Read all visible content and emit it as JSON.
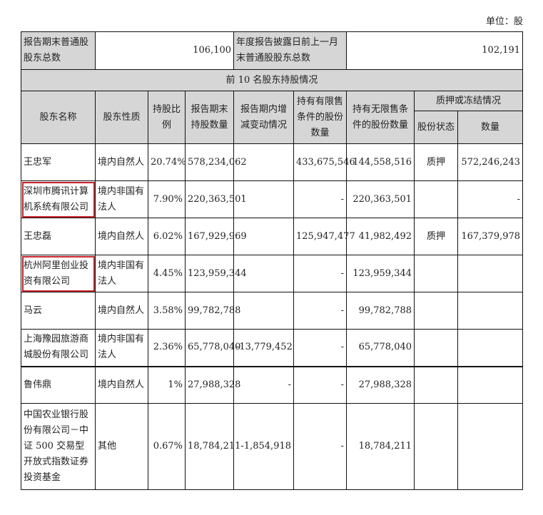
{
  "unit_label": "单位：股",
  "summary": {
    "label1": "报告期末普通股股东总数",
    "value1": "106,100",
    "label2": "年度报告披露日前上一月末普通股股东总数",
    "value2": "102,191"
  },
  "section_title": "前 10 名股东持股情况",
  "headers": {
    "name": "股东名称",
    "nature": "股东性质",
    "ratio": "持股比例",
    "end_qty": "报告期末持股数量",
    "change": "报告期内增减变动情况",
    "restricted": "持有有限售条件的股份数量",
    "unrestricted": "持有无限售条件的股份数量",
    "pledge": "质押或冻结情况",
    "pledge_status": "股份状态",
    "pledge_qty": "数量"
  },
  "rows": [
    {
      "name": "王忠军",
      "nature": "境内自然人",
      "ratio": "20.74%",
      "end_qty": "578,234,062",
      "change": "",
      "restricted": "433,675,546",
      "unrestricted": "144,558,516",
      "pledge_status": "质押",
      "pledge_qty": "572,246,243"
    },
    {
      "name": "深圳市腾讯计算机系统有限公司",
      "nature": "境内非国有法人",
      "ratio": "7.90%",
      "end_qty": "220,363,501",
      "change": "",
      "restricted": "-",
      "unrestricted": "220,363,501",
      "pledge_status": "",
      "pledge_qty": "-"
    },
    {
      "name": "王忠磊",
      "nature": "境内自然人",
      "ratio": "6.02%",
      "end_qty": "167,929,969",
      "change": "",
      "restricted": "125,947,477",
      "unrestricted": "41,982,492",
      "pledge_status": "质押",
      "pledge_qty": "167,379,978"
    },
    {
      "name": "杭州阿里创业投资有限公司",
      "nature": "境内非国有法人",
      "ratio": "4.45%",
      "end_qty": "123,959,344",
      "change": "",
      "restricted": "-",
      "unrestricted": "123,959,344",
      "pledge_status": "",
      "pledge_qty": ""
    },
    {
      "name": "马云",
      "nature": "境内自然人",
      "ratio": "3.58%",
      "end_qty": "99,782,788",
      "change": "",
      "restricted": "-",
      "unrestricted": "99,782,788",
      "pledge_status": "",
      "pledge_qty": ""
    },
    {
      "name": "上海豫园旅游商城股份有限公司",
      "nature": "境内非国有法人",
      "ratio": "2.36%",
      "end_qty": "65,778,040",
      "change": "-13,779,452",
      "restricted": "-",
      "unrestricted": "65,778,040",
      "pledge_status": "",
      "pledge_qty": ""
    },
    {
      "name": "鲁伟鼎",
      "nature": "境内自然人",
      "ratio": "1%",
      "end_qty": "27,988,328",
      "change": "-",
      "restricted": "-",
      "unrestricted": "27,988,328",
      "pledge_status": "",
      "pledge_qty": ""
    },
    {
      "name": "中国农业银行股份有限公司－中证 500 交易型开放式指数证券投资基金",
      "nature": "其他",
      "ratio": "0.67%",
      "end_qty": "18,784,211",
      "change": "-1,854,918",
      "restricted": "-",
      "unrestricted": "18,784,211",
      "pledge_status": "",
      "pledge_qty": ""
    }
  ],
  "highlighted_rows": [
    1,
    3
  ],
  "highlight_color": "#c8232c"
}
